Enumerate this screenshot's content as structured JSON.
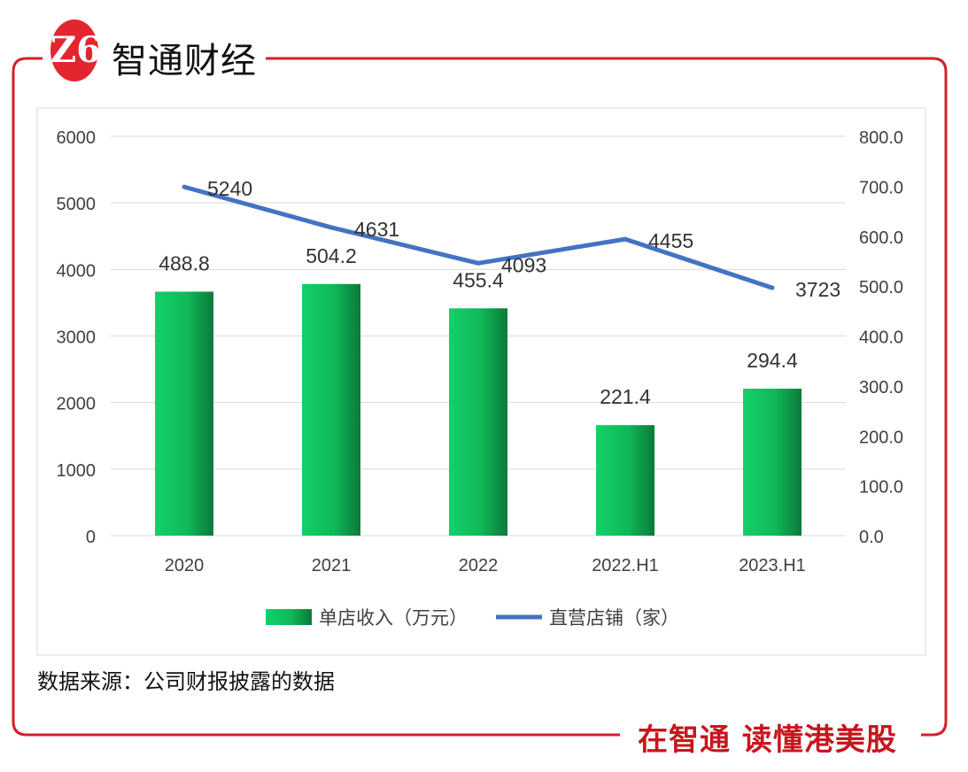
{
  "brand": {
    "name": "智通财经",
    "logo_mark": "Z6",
    "slogan": "在智通 读懂港美股",
    "accent": "#e3262e"
  },
  "source": "数据来源：公司财报披露的数据",
  "chart_data": {
    "type": "bar+line",
    "categories": [
      "2020",
      "2021",
      "2022",
      "2022.H1",
      "2023.H1"
    ],
    "series": [
      {
        "name": "单店收入（万元）",
        "type": "bar",
        "axis": "right",
        "values": [
          488.8,
          504.2,
          455.4,
          221.4,
          294.4
        ],
        "color": "#12c060"
      },
      {
        "name": "直营店铺（家）",
        "type": "line",
        "axis": "left",
        "values": [
          5240,
          4631,
          4093,
          4455,
          3723
        ],
        "color": "#4472c4"
      }
    ],
    "left_axis": {
      "range": [
        0,
        6000
      ],
      "ticks": [
        "0",
        "1000",
        "2000",
        "3000",
        "4000",
        "5000",
        "6000"
      ]
    },
    "right_axis": {
      "range": [
        0,
        800
      ],
      "ticks": [
        "0.0",
        "100.0",
        "200.0",
        "300.0",
        "400.0",
        "500.0",
        "600.0",
        "700.0",
        "800.0"
      ]
    },
    "grid": true,
    "legend": "bottom"
  }
}
